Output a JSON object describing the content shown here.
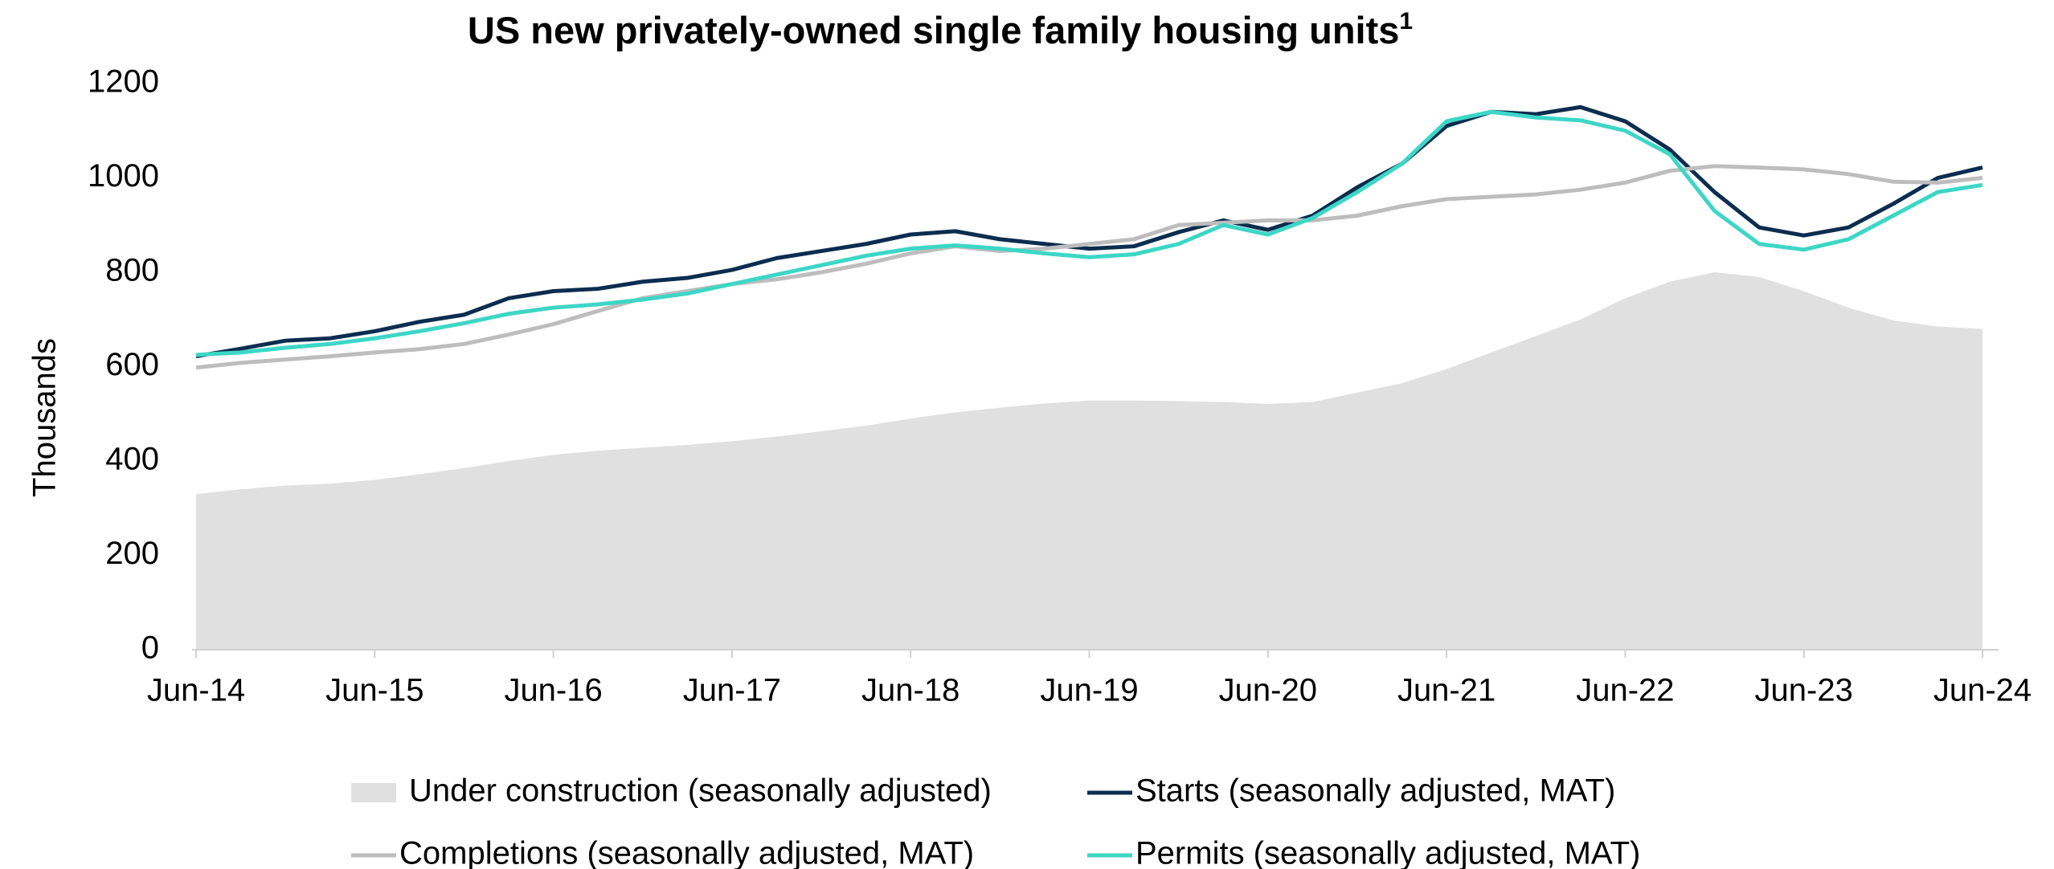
{
  "chart_data": {
    "type": "line",
    "title": "US new privately-owned single family housing units",
    "title_superscript": "1",
    "y_label": "Thousands",
    "categories": [
      "Jun-14",
      null,
      null,
      null,
      "Jun-15",
      null,
      null,
      null,
      "Jun-16",
      null,
      null,
      null,
      "Jun-17",
      null,
      null,
      null,
      "Jun-18",
      null,
      null,
      null,
      "Jun-19",
      null,
      null,
      null,
      "Jun-20",
      null,
      null,
      null,
      "Jun-21",
      null,
      null,
      null,
      "Jun-22",
      null,
      null,
      null,
      "Jun-23",
      null,
      null,
      null,
      "Jun-24"
    ],
    "ylim": [
      0,
      1200
    ],
    "yticks": [
      0,
      200,
      400,
      600,
      800,
      1000,
      1200
    ],
    "grid": false,
    "legend": "bottom",
    "series": [
      {
        "name": "Under construction (seasonally adjusted)",
        "style": "area",
        "color": "#e0e0e0",
        "values": [
          330,
          340,
          348,
          352,
          360,
          372,
          385,
          400,
          413,
          422,
          428,
          434,
          442,
          452,
          463,
          475,
          490,
          503,
          513,
          522,
          528,
          528,
          527,
          525,
          521,
          525,
          545,
          565,
          595,
          630,
          665,
          700,
          745,
          780,
          800,
          790,
          760,
          725,
          698,
          685,
          680
        ]
      },
      {
        "name": "Starts (seasonally adjusted, MAT)",
        "style": "line",
        "color": "#0b2d4f",
        "values": [
          622,
          638,
          655,
          660,
          675,
          695,
          710,
          745,
          760,
          765,
          780,
          788,
          805,
          830,
          845,
          860,
          880,
          887,
          870,
          860,
          850,
          855,
          885,
          910,
          890,
          920,
          980,
          1030,
          1110,
          1140,
          1135,
          1150,
          1120,
          1060,
          970,
          895,
          878,
          895,
          945,
          1000,
          1022
        ]
      },
      {
        "name": "Completions (seasonally adjusted, MAT)",
        "style": "line",
        "color": "#bdbdbd",
        "values": [
          598,
          608,
          615,
          622,
          630,
          637,
          648,
          668,
          690,
          718,
          745,
          760,
          775,
          785,
          800,
          818,
          840,
          855,
          845,
          850,
          860,
          870,
          900,
          905,
          910,
          910,
          920,
          940,
          955,
          960,
          965,
          975,
          990,
          1015,
          1025,
          1022,
          1018,
          1008,
          992,
          990,
          1000
        ]
      },
      {
        "name": "Permits (seasonally adjusted, MAT)",
        "style": "line",
        "color": "#3dd6c6",
        "values": [
          625,
          630,
          640,
          648,
          660,
          675,
          692,
          712,
          725,
          732,
          742,
          755,
          775,
          795,
          815,
          835,
          850,
          857,
          850,
          840,
          832,
          838,
          860,
          900,
          880,
          915,
          970,
          1030,
          1120,
          1140,
          1128,
          1122,
          1100,
          1050,
          930,
          860,
          848,
          870,
          920,
          970,
          985
        ]
      }
    ]
  }
}
